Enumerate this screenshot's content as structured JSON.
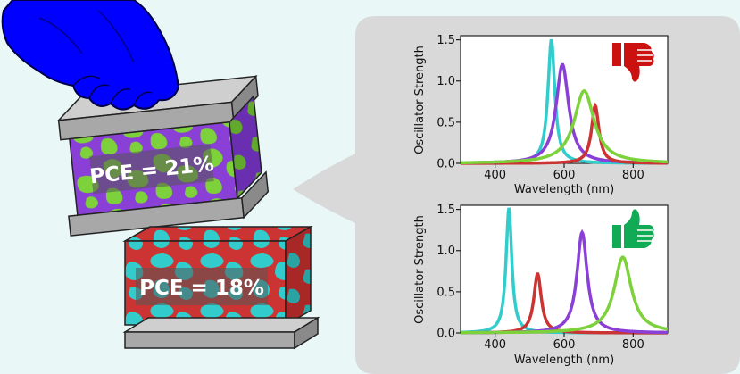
{
  "cells": [
    {
      "label": "PCE = 21%",
      "pattern_colors": [
        "#8a3fd6",
        "#7dd13a"
      ]
    },
    {
      "label": "PCE = 18%",
      "pattern_colors": [
        "#cc3333",
        "#33cccc"
      ]
    }
  ],
  "colors": {
    "background": "#eaf7f7",
    "bubble": "#d9d9d9",
    "hand": "#0000ff",
    "thumbs_down": "#cc1111",
    "thumbs_up": "#11aa55",
    "electrode": "#a8a8a8"
  },
  "chart_data": [
    {
      "type": "line",
      "verdict": "thumbs-down",
      "xlabel": "Wavelength (nm)",
      "ylabel": "Oscillator Strength",
      "xlim": [
        300,
        900
      ],
      "ylim": [
        0,
        1.55
      ],
      "xticks": [
        "400",
        "600",
        "800"
      ],
      "yticks": [
        "0.0",
        "0.5",
        "1.0",
        "1.5"
      ],
      "series": [
        {
          "color": "#33cccc",
          "center": 563,
          "height": 1.5,
          "width": 12
        },
        {
          "color": "#8a3fd6",
          "center": 595,
          "height": 1.2,
          "width": 22
        },
        {
          "color": "#cc3333",
          "center": 690,
          "height": 0.7,
          "width": 13
        },
        {
          "color": "#7dd13a",
          "center": 658,
          "height": 0.88,
          "width": 35
        }
      ]
    },
    {
      "type": "line",
      "verdict": "thumbs-up",
      "xlabel": "Wavelength (nm)",
      "ylabel": "Oscillator Strength",
      "xlim": [
        300,
        900
      ],
      "ylim": [
        0,
        1.55
      ],
      "xticks": [
        "400",
        "600",
        "800"
      ],
      "yticks": [
        "0.0",
        "0.5",
        "1.0",
        "1.5"
      ],
      "series": [
        {
          "color": "#33cccc",
          "center": 440,
          "height": 1.52,
          "width": 10
        },
        {
          "color": "#cc3333",
          "center": 523,
          "height": 0.72,
          "width": 13
        },
        {
          "color": "#8a3fd6",
          "center": 652,
          "height": 1.22,
          "width": 18
        },
        {
          "color": "#7dd13a",
          "center": 770,
          "height": 0.92,
          "width": 30
        }
      ]
    }
  ]
}
